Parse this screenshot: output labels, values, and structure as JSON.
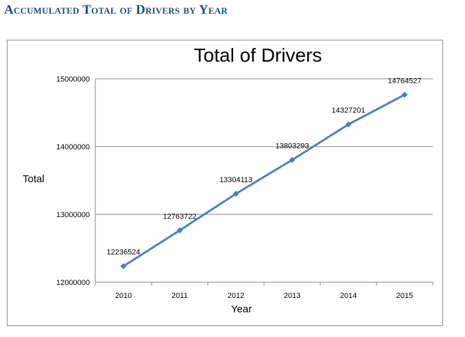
{
  "page": {
    "heading": "Accumulated Total of Drivers by Year"
  },
  "colors": {
    "series": "#4f7ebd",
    "gridline": "#868686",
    "heading": "#1f4e79"
  },
  "chart_data": {
    "type": "line",
    "title": "Total of Drivers",
    "xlabel": "Year",
    "ylabel": "Total",
    "categories": [
      "2010",
      "2011",
      "2012",
      "2013",
      "2014",
      "2015"
    ],
    "series": [
      {
        "values": [
          12236524,
          12763722,
          13304113,
          13803293,
          14327201,
          14764527
        ],
        "labels": [
          "12236524",
          "12763722",
          "13304113",
          "13803293",
          "14327201",
          "14764527"
        ]
      }
    ],
    "ylim": [
      12000000,
      15000000
    ],
    "yticks": [
      "12000000",
      "13000000",
      "14000000",
      "15000000"
    ],
    "grid": true,
    "legend": "none",
    "marker": "diamond"
  }
}
